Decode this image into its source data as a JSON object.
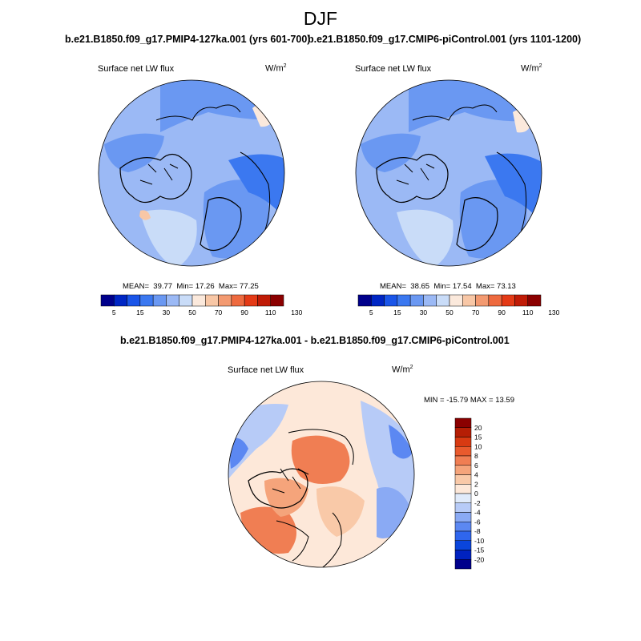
{
  "page_title": "DJF",
  "colors": {
    "palette_abs": [
      "#00008b",
      "#0026c4",
      "#1a55e8",
      "#3b78f0",
      "#6a98f2",
      "#9bb9f5",
      "#c9dcf8",
      "#fbe9dc",
      "#f8c7a6",
      "#f39a71",
      "#ee6a3f",
      "#e43a16",
      "#c01b06",
      "#8b0000"
    ],
    "palette_diff": [
      "#00008b",
      "#0022c0",
      "#0a45dc",
      "#2f66ee",
      "#5c88f2",
      "#8aaaf4",
      "#b7cbf7",
      "#e0ebfb",
      "#fde8d9",
      "#f9c9a8",
      "#f5a47b",
      "#f07e53",
      "#e95a2d",
      "#d83a12",
      "#b51e05",
      "#8b0000"
    ]
  },
  "chart_data": [
    {
      "type": "heatmap",
      "name": "top-left",
      "title": "b.e21.B1850.f09_g17.PMIP4-127ka.001 (yrs 601-700)",
      "left_label": "Surface net LW flux",
      "units_base": "W/m",
      "units_exp": "2",
      "stats": {
        "mean_label": "MEAN=",
        "mean": "39.77",
        "min_label": "Min=",
        "min": "17.26",
        "max_label": "Max=",
        "max": "77.25"
      },
      "colorbar_ticks": [
        "5",
        "15",
        "30",
        "50",
        "70",
        "90",
        "110",
        "130"
      ]
    },
    {
      "type": "heatmap",
      "name": "top-right",
      "title": "b.e21.B1850.f09_g17.CMIP6-piControl.001 (yrs 1101-1200)",
      "left_label": "Surface net LW flux",
      "units_base": "W/m",
      "units_exp": "2",
      "stats": {
        "mean_label": "MEAN=",
        "mean": "38.65",
        "min_label": "Min=",
        "min": "17.54",
        "max_label": "Max=",
        "max": "73.13"
      },
      "colorbar_ticks": [
        "5",
        "15",
        "30",
        "50",
        "70",
        "90",
        "110",
        "130"
      ]
    },
    {
      "type": "heatmap",
      "name": "difference",
      "title": "b.e21.B1850.f09_g17.PMIP4-127ka.001 - b.e21.B1850.f09_g17.CMIP6-piControl.001",
      "left_label": "Surface net LW flux",
      "units_base": "W/m",
      "units_exp": "2",
      "minmax_text": "MIN = -15.79 MAX =  13.59",
      "colorbar_ticks": [
        "20",
        "15",
        "10",
        "8",
        "6",
        "4",
        "2",
        "0",
        "-2",
        "-4",
        "-6",
        "-8",
        "-10",
        "-15",
        "-20"
      ]
    }
  ]
}
